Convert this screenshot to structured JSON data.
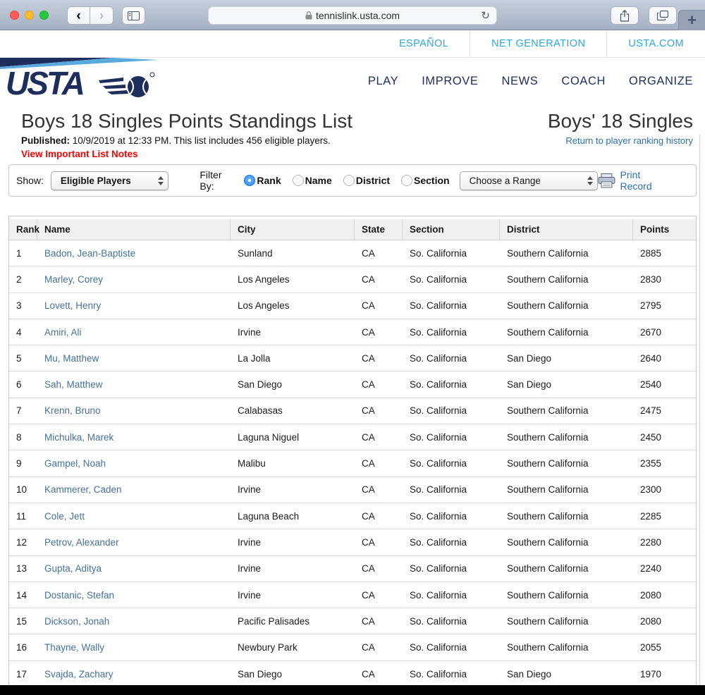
{
  "browser": {
    "url": "tennislink.usta.com",
    "new_tab": "+",
    "back": "‹",
    "forward": "›",
    "reload": "↻"
  },
  "utility_nav": {
    "items": [
      {
        "label": "ESPAÑOL"
      },
      {
        "label": "NET GENERATION"
      },
      {
        "label": "USTA.COM"
      }
    ]
  },
  "main_nav": {
    "items": [
      {
        "label": "PLAY"
      },
      {
        "label": "IMPROVE"
      },
      {
        "label": "NEWS"
      },
      {
        "label": "COACH"
      },
      {
        "label": "ORGANIZE"
      }
    ]
  },
  "header": {
    "logo": "USTA",
    "page_title": "Boys 18 Singles Points Standings List",
    "published_label": "Published:",
    "published_text": " 10/9/2019 at 12:33 PM. This list includes 456 eligible players.",
    "notes_link": "View Important List Notes",
    "right_title": "Boys' 18 Singles",
    "return_link": "Return to player ranking history"
  },
  "filter_bar": {
    "show_label": "Show:",
    "show_value": "Eligible Players",
    "filter_by_label": "Filter By:",
    "radios": [
      {
        "label": "Rank",
        "selected": true
      },
      {
        "label": "Name",
        "selected": false
      },
      {
        "label": "District",
        "selected": false
      },
      {
        "label": "Section",
        "selected": false
      }
    ],
    "range_value": "Choose a Range",
    "print_label": "Print Record"
  },
  "table": {
    "columns": [
      "Rank",
      "Name",
      "City",
      "State",
      "Section",
      "District",
      "Points"
    ],
    "rows": [
      [
        "1",
        "Badon, Jean-Baptiste",
        "Sunland",
        "CA",
        "So. California",
        "Southern California",
        "2885"
      ],
      [
        "2",
        "Marley, Corey",
        "Los Angeles",
        "CA",
        "So. California",
        "Southern California",
        "2830"
      ],
      [
        "3",
        "Lovett, Henry",
        "Los Angeles",
        "CA",
        "So. California",
        "Southern California",
        "2795"
      ],
      [
        "4",
        "Amiri, Ali",
        "Irvine",
        "CA",
        "So. California",
        "Southern California",
        "2670"
      ],
      [
        "5",
        "Mu, Matthew",
        "La Jolla",
        "CA",
        "So. California",
        "San Diego",
        "2640"
      ],
      [
        "6",
        "Sah, Matthew",
        "San Diego",
        "CA",
        "So. California",
        "San Diego",
        "2540"
      ],
      [
        "7",
        "Krenn, Bruno",
        "Calabasas",
        "CA",
        "So. California",
        "Southern California",
        "2475"
      ],
      [
        "8",
        "Michulka, Marek",
        "Laguna Niguel",
        "CA",
        "So. California",
        "Southern California",
        "2450"
      ],
      [
        "9",
        "Gampel, Noah",
        "Malibu",
        "CA",
        "So. California",
        "Southern California",
        "2355"
      ],
      [
        "10",
        "Kammerer, Caden",
        "Irvine",
        "CA",
        "So. California",
        "Southern California",
        "2300"
      ],
      [
        "11",
        "Cole, Jett",
        "Laguna Beach",
        "CA",
        "So. California",
        "Southern California",
        "2285"
      ],
      [
        "12",
        "Petrov, Alexander",
        "Irvine",
        "CA",
        "So. California",
        "Southern California",
        "2280"
      ],
      [
        "13",
        "Gupta, Aditya",
        "Irvine",
        "CA",
        "So. California",
        "Southern California",
        "2240"
      ],
      [
        "14",
        "Dostanic, Stefan",
        "Irvine",
        "CA",
        "So. California",
        "Southern California",
        "2080"
      ],
      [
        "15",
        "Dickson, Jonah",
        "Pacific Palisades",
        "CA",
        "So. California",
        "Southern California",
        "2080"
      ],
      [
        "16",
        "Thayne, Wally",
        "Newbury Park",
        "CA",
        "So. California",
        "Southern California",
        "2055"
      ],
      [
        "17",
        "Svajda, Zachary",
        "San Diego",
        "CA",
        "So. California",
        "San Diego",
        "1970"
      ]
    ]
  },
  "colors": {
    "usta_navy": "#1e2e5c",
    "usta_light_blue": "#29a9e1",
    "link_blue": "#2a6fb5",
    "name_link_blue": "#44719c",
    "notes_red": "#ff0000",
    "header_bg": "#f0f0f0"
  }
}
